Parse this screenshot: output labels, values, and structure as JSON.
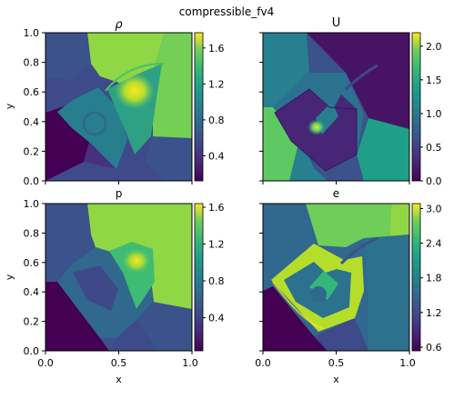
{
  "figure": {
    "suptitle": "compressible_fv4"
  },
  "chart_data": [
    {
      "type": "heatmap",
      "title": "ρ",
      "xlabel": "",
      "ylabel": "y",
      "xlim": [
        0.0,
        1.0
      ],
      "ylim": [
        0.0,
        1.0
      ],
      "xticks": [
        "",
        "",
        ""
      ],
      "yticks": [
        "0.0",
        "0.2",
        "0.4",
        "0.6",
        "0.8",
        "1.0"
      ],
      "colormap": "viridis",
      "colorbar": {
        "range": [
          0.1,
          1.75
        ],
        "ticks": [
          0.4,
          0.8,
          1.2,
          1.6
        ],
        "tick_labels": [
          "0.4",
          "0.8",
          "1.2",
          "1.6"
        ]
      }
    },
    {
      "type": "heatmap",
      "title": "U",
      "xlabel": "",
      "ylabel": "",
      "xlim": [
        0.0,
        1.0
      ],
      "ylim": [
        0.0,
        1.0
      ],
      "xticks": [
        "",
        "",
        ""
      ],
      "yticks": [
        "",
        "",
        "",
        "",
        "",
        ""
      ],
      "colormap": "viridis",
      "colorbar": {
        "range": [
          0.0,
          2.2
        ],
        "ticks": [
          0.0,
          0.5,
          1.0,
          1.5,
          2.0
        ],
        "tick_labels": [
          "0.0",
          "0.5",
          "1.0",
          "1.5",
          "2.0"
        ]
      }
    },
    {
      "type": "heatmap",
      "title": "p",
      "xlabel": "x",
      "ylabel": "y",
      "xlim": [
        0.0,
        1.0
      ],
      "ylim": [
        0.0,
        1.0
      ],
      "xticks": [
        "0.0",
        "0.5",
        "1.0"
      ],
      "yticks": [
        "0.0",
        "0.2",
        "0.4",
        "0.6",
        "0.8",
        "1.0"
      ],
      "colormap": "viridis",
      "colorbar": {
        "range": [
          0.05,
          1.65
        ],
        "ticks": [
          0.4,
          0.8,
          1.2,
          1.6
        ],
        "tick_labels": [
          "0.4",
          "0.8",
          "1.2",
          "1.6"
        ]
      }
    },
    {
      "type": "heatmap",
      "title": "e",
      "xlabel": "x",
      "ylabel": "",
      "xlim": [
        0.0,
        1.0
      ],
      "ylim": [
        0.0,
        1.0
      ],
      "xticks": [
        "0.0",
        "0.5",
        "1.0"
      ],
      "yticks": [
        "",
        "",
        "",
        "",
        "",
        ""
      ],
      "colormap": "viridis",
      "colorbar": {
        "range": [
          0.55,
          3.1
        ],
        "ticks": [
          0.6,
          1.2,
          1.8,
          2.4,
          3.0
        ],
        "tick_labels": [
          "0.6",
          "1.2",
          "1.8",
          "2.4",
          "3.0"
        ]
      }
    }
  ]
}
